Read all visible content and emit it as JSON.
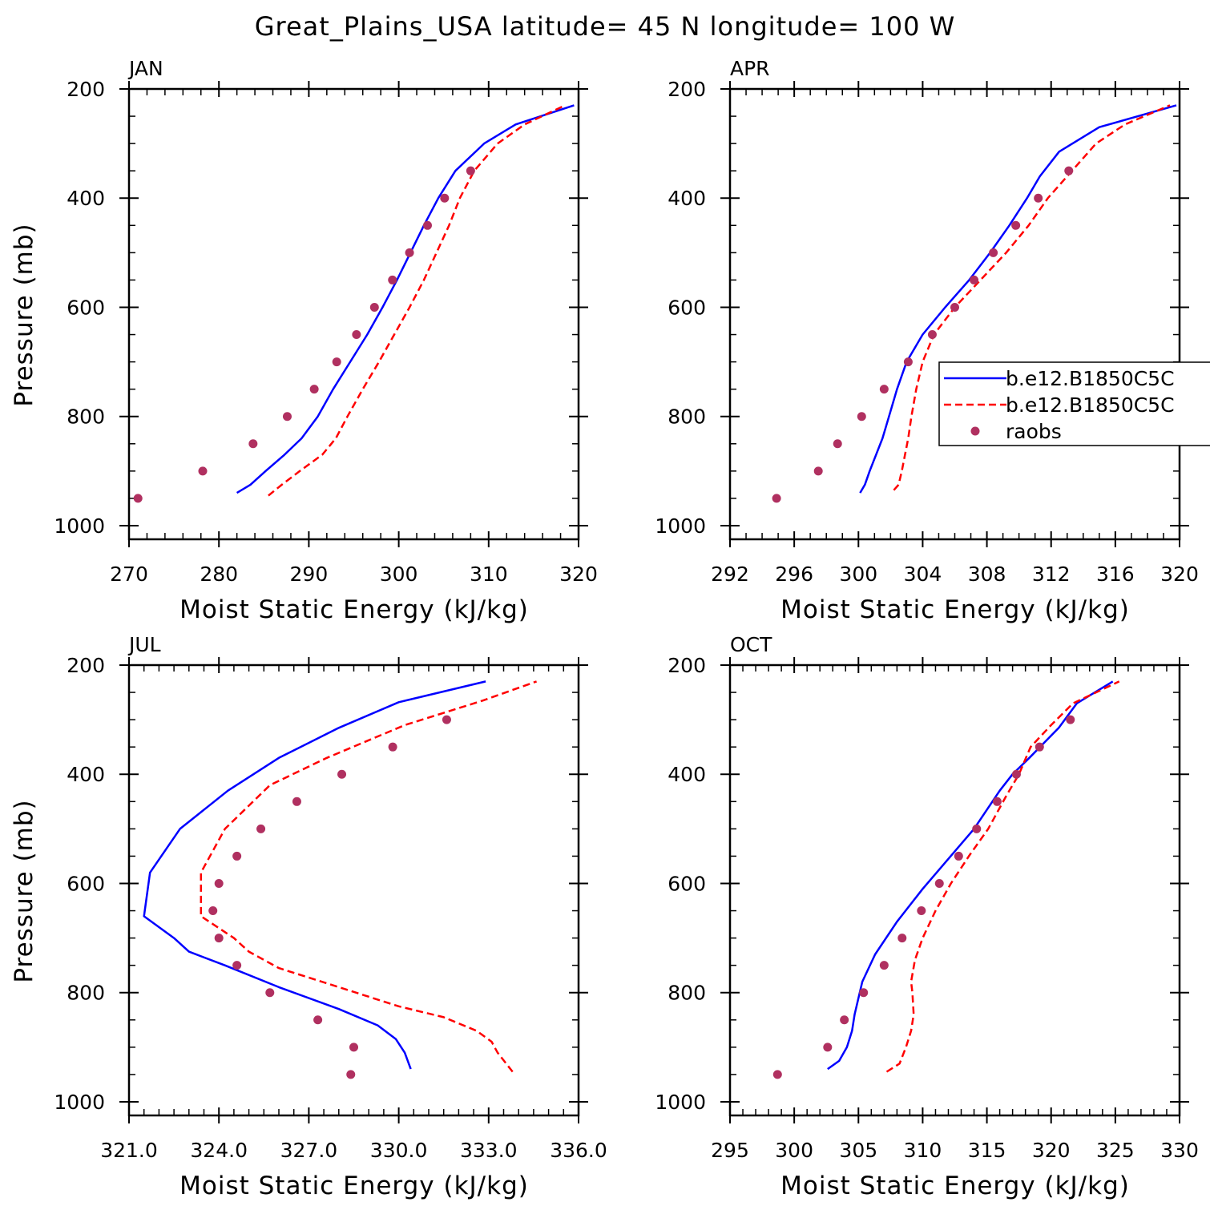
{
  "title": "Great_Plains_USA  latitude= 45 N longitude= 100 W",
  "colors": {
    "model1": "#0000ff",
    "model2": "#ff0000",
    "raobs": "#b03060"
  },
  "legend": {
    "entries": [
      "b.e12.B1850C5C",
      "b.e12.B1850C5C",
      "raobs"
    ]
  },
  "chart_data": [
    {
      "type": "line",
      "panel_title": "JAN",
      "xlabel": "Moist Static Energy (kJ/kg)",
      "ylabel": "Pressure (mb)",
      "xlim": [
        270,
        320
      ],
      "ylim": [
        1025,
        200
      ],
      "xticks": [
        270,
        280,
        290,
        300,
        310,
        320
      ],
      "xtick_labels": [
        "270",
        "280",
        "290",
        "300",
        "310",
        "320"
      ],
      "x_minor_step": 2,
      "yticks": [
        200,
        400,
        600,
        800,
        1000
      ],
      "ytick_labels": [
        "200",
        "400",
        "600",
        "800",
        "1000"
      ],
      "grid": false,
      "series": [
        {
          "name": "b.e12.B1850C5C",
          "style": "solid",
          "points": [
            [
              282.0,
              940
            ],
            [
              283.5,
              925
            ],
            [
              285.2,
              900
            ],
            [
              287.3,
              870
            ],
            [
              289.2,
              840
            ],
            [
              291.0,
              800
            ],
            [
              292.7,
              750
            ],
            [
              294.6,
              700
            ],
            [
              296.5,
              650
            ],
            [
              298.2,
              600
            ],
            [
              299.8,
              550
            ],
            [
              301.3,
              500
            ],
            [
              302.8,
              450
            ],
            [
              304.4,
              400
            ],
            [
              306.3,
              350
            ],
            [
              309.5,
              300
            ],
            [
              313.0,
              265
            ],
            [
              319.5,
              230
            ]
          ]
        },
        {
          "name": "b.e12.B1850C5C",
          "style": "dashed",
          "points": [
            [
              285.5,
              945
            ],
            [
              287.0,
              925
            ],
            [
              289.0,
              900
            ],
            [
              291.5,
              870
            ],
            [
              293.0,
              840
            ],
            [
              294.3,
              800
            ],
            [
              296.0,
              750
            ],
            [
              297.8,
              700
            ],
            [
              299.5,
              650
            ],
            [
              301.2,
              600
            ],
            [
              302.8,
              550
            ],
            [
              304.2,
              500
            ],
            [
              305.6,
              450
            ],
            [
              306.8,
              400
            ],
            [
              308.4,
              350
            ],
            [
              311.0,
              300
            ],
            [
              314.0,
              265
            ],
            [
              318.5,
              230
            ]
          ]
        },
        {
          "name": "raobs",
          "style": "markers",
          "points": [
            [
              271.0,
              950
            ],
            [
              278.2,
              900
            ],
            [
              283.8,
              850
            ],
            [
              287.6,
              800
            ],
            [
              290.6,
              750
            ],
            [
              293.1,
              700
            ],
            [
              295.3,
              650
            ],
            [
              297.3,
              600
            ],
            [
              299.3,
              550
            ],
            [
              301.2,
              500
            ],
            [
              303.2,
              450
            ],
            [
              305.1,
              400
            ],
            [
              308.0,
              350
            ]
          ]
        }
      ]
    },
    {
      "type": "line",
      "panel_title": "APR",
      "xlabel": "Moist Static Energy (kJ/kg)",
      "ylabel": "",
      "xlim": [
        292,
        320
      ],
      "ylim": [
        1025,
        200
      ],
      "xticks": [
        292,
        296,
        300,
        304,
        308,
        312,
        316,
        320
      ],
      "xtick_labels": [
        "292",
        "296",
        "300",
        "304",
        "308",
        "312",
        "316",
        "320"
      ],
      "x_minor_step": 1,
      "yticks": [
        200,
        400,
        600,
        800,
        1000
      ],
      "ytick_labels": [
        "200",
        "400",
        "600",
        "800",
        "1000"
      ],
      "grid": false,
      "legend_position": "right",
      "series": [
        {
          "name": "b.e12.B1850C5C",
          "style": "solid",
          "points": [
            [
              300.1,
              940
            ],
            [
              300.4,
              925
            ],
            [
              300.7,
              900
            ],
            [
              301.1,
              870
            ],
            [
              301.5,
              840
            ],
            [
              301.9,
              800
            ],
            [
              302.4,
              750
            ],
            [
              303.0,
              700
            ],
            [
              304.0,
              650
            ],
            [
              305.4,
              600
            ],
            [
              306.9,
              550
            ],
            [
              308.2,
              500
            ],
            [
              309.4,
              450
            ],
            [
              310.5,
              400
            ],
            [
              311.3,
              360
            ],
            [
              312.5,
              315
            ],
            [
              315.0,
              270
            ],
            [
              319.8,
              230
            ]
          ]
        },
        {
          "name": "b.e12.B1850C5C",
          "style": "dashed",
          "points": [
            [
              302.2,
              935
            ],
            [
              302.5,
              925
            ],
            [
              302.7,
              900
            ],
            [
              302.9,
              870
            ],
            [
              303.1,
              840
            ],
            [
              303.3,
              800
            ],
            [
              303.6,
              750
            ],
            [
              304.0,
              700
            ],
            [
              304.7,
              650
            ],
            [
              306.0,
              600
            ],
            [
              307.6,
              550
            ],
            [
              309.2,
              500
            ],
            [
              310.6,
              450
            ],
            [
              311.8,
              400
            ],
            [
              313.3,
              350
            ],
            [
              314.8,
              300
            ],
            [
              316.6,
              265
            ],
            [
              319.4,
              230
            ]
          ]
        },
        {
          "name": "raobs",
          "style": "markers",
          "points": [
            [
              294.9,
              950
            ],
            [
              297.5,
              900
            ],
            [
              298.7,
              850
            ],
            [
              300.2,
              800
            ],
            [
              301.6,
              750
            ],
            [
              303.1,
              700
            ],
            [
              304.6,
              650
            ],
            [
              306.0,
              600
            ],
            [
              307.2,
              550
            ],
            [
              308.4,
              500
            ],
            [
              309.8,
              450
            ],
            [
              311.2,
              400
            ],
            [
              313.1,
              350
            ]
          ]
        }
      ]
    },
    {
      "type": "line",
      "panel_title": "JUL",
      "xlabel": "Moist Static Energy (kJ/kg)",
      "ylabel": "Pressure (mb)",
      "xlim": [
        321,
        336
      ],
      "ylim": [
        1025,
        200
      ],
      "xticks": [
        321,
        324,
        327,
        330,
        333,
        336
      ],
      "xtick_labels": [
        "321.0",
        "324.0",
        "327.0",
        "330.0",
        "333.0",
        "336.0"
      ],
      "x_minor_step": 0.5,
      "yticks": [
        200,
        400,
        600,
        800,
        1000
      ],
      "ytick_labels": [
        "200",
        "400",
        "600",
        "800",
        "1000"
      ],
      "grid": false,
      "series": [
        {
          "name": "b.e12.B1850C5C",
          "style": "solid",
          "points": [
            [
              330.4,
              940
            ],
            [
              330.2,
              910
            ],
            [
              329.9,
              885
            ],
            [
              329.3,
              860
            ],
            [
              328.0,
              830
            ],
            [
              326.0,
              790
            ],
            [
              324.2,
              750
            ],
            [
              323.0,
              725
            ],
            [
              322.5,
              700
            ],
            [
              321.5,
              660
            ],
            [
              321.7,
              580
            ],
            [
              322.7,
              500
            ],
            [
              324.3,
              430
            ],
            [
              326.0,
              370
            ],
            [
              328.0,
              315
            ],
            [
              330.0,
              268
            ],
            [
              332.9,
              230
            ]
          ]
        },
        {
          "name": "b.e12.B1850C5C",
          "style": "dashed",
          "points": [
            [
              333.8,
              945
            ],
            [
              333.3,
              910
            ],
            [
              333.1,
              890
            ],
            [
              332.6,
              870
            ],
            [
              331.5,
              845
            ],
            [
              330.0,
              825
            ],
            [
              328.0,
              790
            ],
            [
              326.0,
              755
            ],
            [
              325.0,
              725
            ],
            [
              324.5,
              700
            ],
            [
              323.4,
              660
            ],
            [
              323.4,
              580
            ],
            [
              324.2,
              500
            ],
            [
              325.7,
              420
            ],
            [
              327.6,
              370
            ],
            [
              330.2,
              310
            ],
            [
              332.8,
              265
            ],
            [
              334.6,
              230
            ]
          ]
        },
        {
          "name": "raobs",
          "style": "markers",
          "points": [
            [
              328.4,
              950
            ],
            [
              328.5,
              900
            ],
            [
              327.3,
              850
            ],
            [
              325.7,
              800
            ],
            [
              324.6,
              750
            ],
            [
              324.0,
              700
            ],
            [
              323.8,
              650
            ],
            [
              324.0,
              600
            ],
            [
              324.6,
              550
            ],
            [
              325.4,
              500
            ],
            [
              326.6,
              450
            ],
            [
              328.1,
              400
            ],
            [
              329.8,
              350
            ],
            [
              331.6,
              300
            ]
          ]
        }
      ]
    },
    {
      "type": "line",
      "panel_title": "OCT",
      "xlabel": "Moist Static Energy (kJ/kg)",
      "ylabel": "",
      "xlim": [
        295,
        330
      ],
      "ylim": [
        1025,
        200
      ],
      "xticks": [
        295,
        300,
        305,
        310,
        315,
        320,
        325,
        330
      ],
      "xtick_labels": [
        "295",
        "300",
        "305",
        "310",
        "315",
        "320",
        "325",
        "330"
      ],
      "x_minor_step": 1,
      "yticks": [
        200,
        400,
        600,
        800,
        1000
      ],
      "ytick_labels": [
        "200",
        "400",
        "600",
        "800",
        "1000"
      ],
      "grid": false,
      "series": [
        {
          "name": "b.e12.B1850C5C",
          "style": "solid",
          "points": [
            [
              302.6,
              940
            ],
            [
              303.5,
              925
            ],
            [
              304.1,
              900
            ],
            [
              304.5,
              870
            ],
            [
              304.7,
              840
            ],
            [
              305.0,
              810
            ],
            [
              305.3,
              780
            ],
            [
              306.3,
              730
            ],
            [
              308.0,
              670
            ],
            [
              310.0,
              610
            ],
            [
              312.0,
              555
            ],
            [
              314.0,
              500
            ],
            [
              316.0,
              430
            ],
            [
              317.0,
              400
            ],
            [
              318.3,
              370
            ],
            [
              320.6,
              315
            ],
            [
              322.0,
              270
            ],
            [
              324.8,
              230
            ]
          ]
        },
        {
          "name": "b.e12.B1850C5C",
          "style": "dashed",
          "points": [
            [
              307.2,
              945
            ],
            [
              308.2,
              930
            ],
            [
              308.7,
              900
            ],
            [
              309.1,
              870
            ],
            [
              309.3,
              840
            ],
            [
              309.2,
              800
            ],
            [
              309.1,
              780
            ],
            [
              309.4,
              740
            ],
            [
              310.0,
              700
            ],
            [
              311.0,
              650
            ],
            [
              312.2,
              600
            ],
            [
              313.6,
              550
            ],
            [
              315.1,
              500
            ],
            [
              316.5,
              440
            ],
            [
              317.5,
              400
            ],
            [
              318.4,
              350
            ],
            [
              320.0,
              310
            ],
            [
              321.7,
              270
            ],
            [
              325.3,
              230
            ]
          ]
        },
        {
          "name": "raobs",
          "style": "markers",
          "points": [
            [
              298.7,
              950
            ],
            [
              302.6,
              900
            ],
            [
              303.9,
              850
            ],
            [
              305.4,
              800
            ],
            [
              307.0,
              750
            ],
            [
              308.4,
              700
            ],
            [
              309.9,
              650
            ],
            [
              311.3,
              600
            ],
            [
              312.8,
              550
            ],
            [
              314.2,
              500
            ],
            [
              315.8,
              450
            ],
            [
              317.3,
              400
            ],
            [
              319.1,
              350
            ],
            [
              321.5,
              300
            ]
          ]
        }
      ]
    }
  ]
}
